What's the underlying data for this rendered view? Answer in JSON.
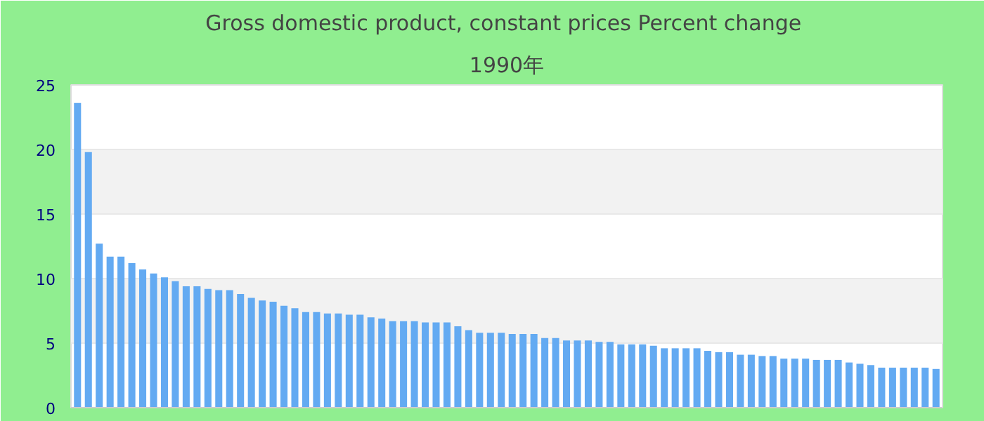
{
  "chart_data": {
    "type": "bar",
    "title": "Gross domestic product, constant prices  Percent change",
    "subtitle": "1990年",
    "categories": [
      null,
      null,
      null,
      null,
      null,
      null,
      null,
      null,
      null,
      null,
      null,
      null,
      null,
      null,
      null,
      null,
      null,
      null,
      null,
      null,
      null,
      null,
      null,
      null,
      null,
      null,
      null,
      null,
      null,
      null,
      null,
      null,
      null,
      null,
      null,
      null,
      null,
      null,
      null,
      null,
      null,
      null,
      null,
      null,
      null,
      null,
      null,
      null,
      null,
      null,
      null,
      null,
      null,
      null,
      null,
      null,
      null,
      null,
      null,
      null,
      null,
      null,
      null,
      null,
      null,
      null,
      null,
      null,
      null,
      null,
      null,
      null,
      null,
      null,
      null,
      null,
      null,
      null,
      null,
      null
    ],
    "values": [
      23.6,
      19.8,
      12.7,
      11.7,
      11.7,
      11.2,
      10.7,
      10.4,
      10.1,
      9.8,
      9.4,
      9.4,
      9.2,
      9.1,
      9.1,
      8.8,
      8.5,
      8.3,
      8.2,
      7.9,
      7.7,
      7.4,
      7.4,
      7.3,
      7.3,
      7.2,
      7.2,
      7.0,
      6.9,
      6.7,
      6.7,
      6.7,
      6.6,
      6.6,
      6.6,
      6.3,
      6.0,
      5.8,
      5.8,
      5.8,
      5.7,
      5.7,
      5.7,
      5.4,
      5.4,
      5.2,
      5.2,
      5.2,
      5.1,
      5.1,
      4.9,
      4.9,
      4.9,
      4.8,
      4.6,
      4.6,
      4.6,
      4.6,
      4.4,
      4.3,
      4.3,
      4.1,
      4.1,
      4.0,
      4.0,
      3.8,
      3.8,
      3.8,
      3.7,
      3.7,
      3.7,
      3.5,
      3.4,
      3.3,
      3.1,
      3.1,
      3.1,
      3.1,
      3.1,
      3.0
    ],
    "color": "#63aaf2",
    "ylim": [
      0,
      25
    ],
    "yticks": [
      0,
      5,
      10,
      15,
      20,
      25
    ],
    "grid": "y"
  }
}
